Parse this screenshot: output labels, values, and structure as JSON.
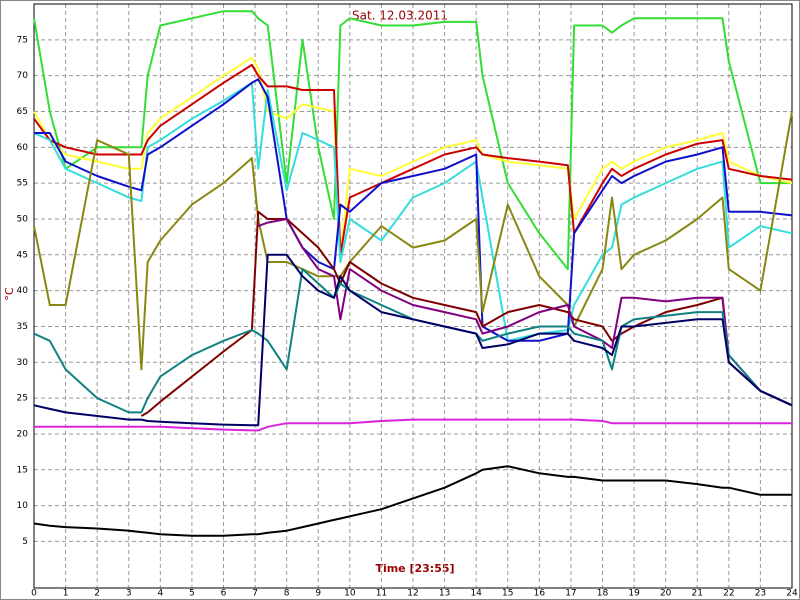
{
  "chart_data": {
    "type": "line",
    "title": "Sat. 12.03.2011",
    "xlabel": "Time [23:55]",
    "ylabel": "°C",
    "xlim": [
      0,
      24
    ],
    "xticks": [
      0,
      1,
      2,
      3,
      4,
      5,
      6,
      7,
      8,
      9,
      10,
      11,
      12,
      13,
      14,
      15,
      16,
      17,
      18,
      19,
      20,
      21,
      22,
      23,
      24
    ],
    "ylim": [
      -1.5,
      80
    ],
    "yticks": [
      5,
      10,
      15,
      20,
      25,
      30,
      35,
      40,
      45,
      50,
      55,
      60,
      65,
      70,
      75
    ],
    "grid": true,
    "x": [
      0,
      0.5,
      1,
      2,
      3,
      3.4,
      3.6,
      4,
      5,
      6,
      6.9,
      7.1,
      7.4,
      8,
      8.5,
      9,
      9.5,
      9.7,
      10,
      11,
      12,
      13,
      14,
      14.2,
      15,
      16,
      16.9,
      17.1,
      18,
      18.3,
      18.6,
      19,
      20,
      21,
      21.8,
      22,
      23,
      24
    ],
    "series": [
      {
        "color": "#33dd33",
        "values": [
          78,
          65,
          57,
          60,
          60,
          60,
          70,
          77,
          78,
          79,
          79,
          78,
          77,
          55,
          75,
          60,
          50,
          77,
          78,
          77,
          77,
          77.5,
          77.5,
          70,
          55,
          48,
          43,
          77,
          77,
          76,
          77,
          78,
          78,
          78,
          78,
          72,
          55,
          55
        ]
      },
      {
        "color": "#ffff33",
        "values": [
          65,
          61,
          59,
          58,
          57,
          57,
          62,
          64,
          67,
          70,
          72.5,
          71,
          65,
          64,
          66,
          65.5,
          65,
          45,
          57,
          56,
          58,
          60,
          61,
          59,
          58,
          57.5,
          57,
          50,
          57,
          58,
          57,
          58,
          60,
          61,
          62,
          58,
          56,
          55
        ]
      },
      {
        "color": "#cc0000",
        "values": [
          64,
          61,
          60,
          59,
          59,
          59,
          61,
          63,
          66,
          69,
          71.5,
          70,
          68.5,
          68.5,
          68,
          68,
          68,
          45,
          53,
          55,
          57,
          59,
          60,
          59,
          58.5,
          58,
          57.5,
          48,
          55,
          57,
          56,
          57,
          59,
          60.5,
          61,
          57,
          56,
          55.5
        ]
      },
      {
        "color": "#33dddd",
        "values": [
          62,
          61,
          57,
          55,
          53,
          52.5,
          60,
          61,
          64,
          66.5,
          69,
          57,
          68,
          54,
          62,
          61,
          60,
          44,
          50,
          47,
          53,
          55,
          58,
          53,
          33,
          34,
          34.5,
          38,
          45,
          46,
          52,
          53,
          55,
          57,
          58,
          46,
          49,
          48
        ]
      },
      {
        "color": "#1010cc",
        "values": [
          62,
          62,
          58,
          56,
          54.5,
          54,
          59,
          60,
          63,
          66,
          69,
          69.5,
          67,
          50,
          46,
          44,
          43,
          52,
          51,
          55,
          56,
          57,
          59,
          35,
          33,
          33,
          34,
          48,
          54,
          56,
          55,
          56,
          58,
          59,
          60,
          51,
          51,
          50.5
        ]
      },
      {
        "color": "#888811",
        "values": [
          49,
          38,
          38,
          61,
          59,
          29,
          44,
          47,
          52,
          55,
          58.5,
          50,
          44,
          44,
          43,
          42,
          42,
          42,
          44,
          49,
          46,
          47,
          50,
          37,
          52,
          42,
          38,
          35,
          43,
          53,
          43,
          45,
          47,
          50,
          53,
          43,
          40,
          65
        ]
      },
      {
        "color": "#800000",
        "values": [
          null,
          null,
          null,
          null,
          null,
          22.5,
          23,
          24.5,
          28,
          31.5,
          34.5,
          51,
          50,
          50,
          48,
          46,
          43,
          41,
          44,
          41,
          39,
          38,
          37,
          35,
          37,
          38,
          37,
          36,
          35,
          33,
          34,
          35,
          37,
          38,
          39,
          30,
          26,
          24
        ]
      },
      {
        "color": "#800080",
        "values": [
          null,
          null,
          null,
          null,
          null,
          null,
          null,
          null,
          null,
          null,
          null,
          49,
          49.5,
          50,
          46,
          43,
          42,
          36,
          43,
          40,
          38,
          37,
          36,
          34,
          35,
          37,
          38,
          35,
          33,
          32,
          39,
          39,
          38.5,
          39,
          39,
          31,
          26,
          24
        ]
      },
      {
        "color": "#108080",
        "values": [
          34,
          33,
          29,
          25,
          23,
          23,
          25,
          28,
          31,
          33,
          34.5,
          34,
          33,
          29,
          43,
          41,
          39,
          41,
          40,
          38,
          36,
          35,
          34,
          33,
          34,
          35,
          35,
          34,
          33,
          29,
          35,
          36,
          36.5,
          37,
          37,
          31,
          26,
          24
        ]
      },
      {
        "color": "#000066",
        "values": [
          24,
          23.5,
          23,
          22.5,
          22,
          22,
          21.8,
          21.7,
          21.5,
          21.3,
          21.2,
          21.2,
          45,
          45,
          42,
          40,
          39,
          42,
          40,
          37,
          36,
          35,
          34,
          32,
          32.5,
          34,
          34,
          33,
          32,
          31,
          35,
          35,
          35.5,
          36,
          36,
          30,
          26,
          24
        ]
      },
      {
        "color": "#dd22dd",
        "values": [
          21,
          21,
          21,
          21,
          21,
          21,
          21,
          21,
          20.8,
          20.6,
          20.5,
          20.5,
          21,
          21.5,
          21.5,
          21.5,
          21.5,
          21.5,
          21.5,
          21.8,
          22,
          22,
          22,
          22,
          22,
          22,
          22,
          22,
          21.8,
          21.5,
          21.5,
          21.5,
          21.5,
          21.5,
          21.5,
          21.5,
          21.5,
          21.5
        ]
      },
      {
        "color": "#000000",
        "values": [
          7.5,
          7.2,
          7,
          6.8,
          6.5,
          6.3,
          6.2,
          6,
          5.8,
          5.8,
          6,
          6,
          6.2,
          6.5,
          7,
          7.5,
          8,
          8.2,
          8.5,
          9.5,
          11,
          12.5,
          14.5,
          15,
          15.5,
          14.5,
          14,
          14,
          13.5,
          13.5,
          13.5,
          13.5,
          13.5,
          13,
          12.5,
          12.5,
          11.5,
          11.5
        ]
      }
    ]
  }
}
